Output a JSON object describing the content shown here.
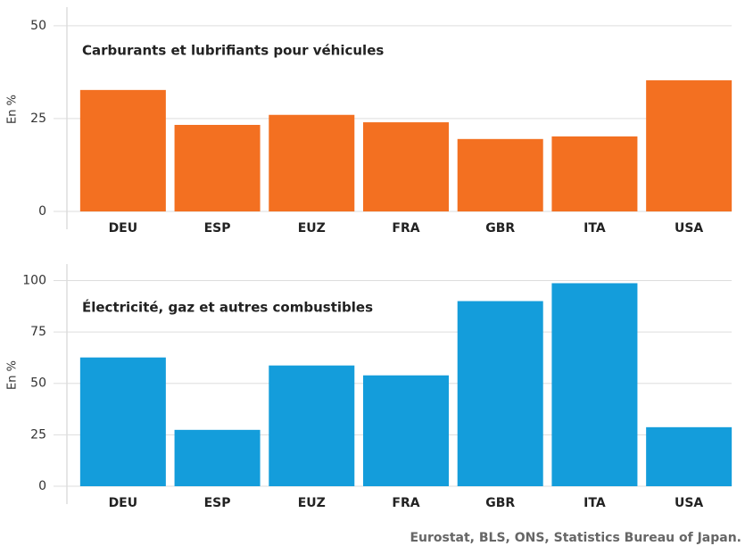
{
  "chart_data": [
    {
      "type": "bar",
      "title": "Carburants et lubrifiants pour véhicules",
      "y_label": "En %",
      "categories": [
        "DEU",
        "ESP",
        "EUZ",
        "FRA",
        "GBR",
        "ITA",
        "USA"
      ],
      "values": [
        32.7,
        23.3,
        26,
        24,
        19.5,
        20.2,
        35.3
      ],
      "color": "#f37021",
      "ylim": [
        0,
        55
      ],
      "yticks": [
        0,
        25,
        50
      ],
      "grid": true
    },
    {
      "type": "bar",
      "title": "Électricité, gaz et autres combustibles",
      "y_label": "En %",
      "categories": [
        "DEU",
        "ESP",
        "EUZ",
        "FRA",
        "GBR",
        "ITA",
        "USA"
      ],
      "values": [
        62.6,
        27.4,
        58.7,
        53.9,
        90,
        98.7,
        28.7
      ],
      "color": "#149ddb",
      "ylim": [
        0,
        108
      ],
      "yticks": [
        0,
        25,
        50,
        75,
        100
      ],
      "grid": true
    }
  ],
  "source": "Eurostat, BLS, ONS, Statistics Bureau of Japan."
}
